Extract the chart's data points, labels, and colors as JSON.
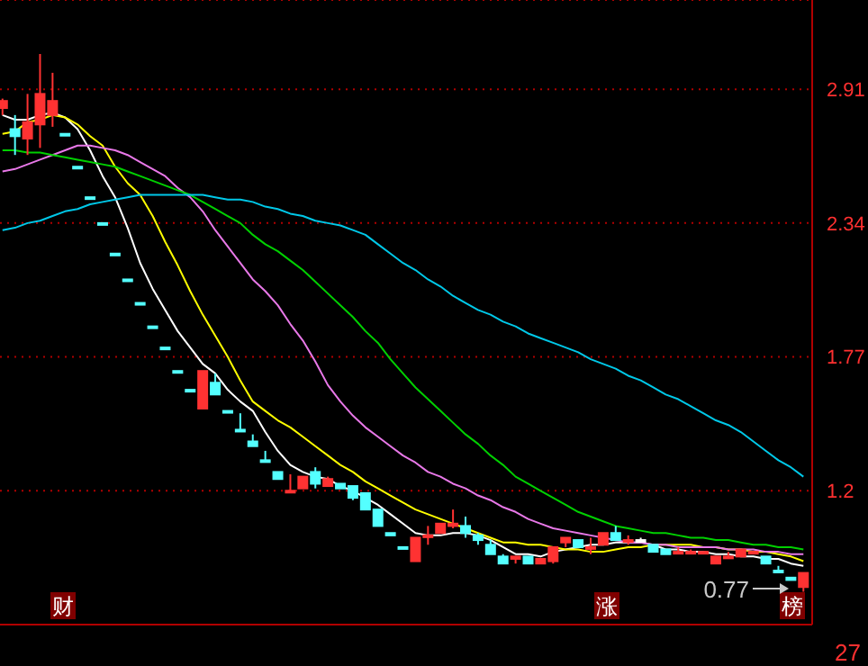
{
  "chart_data": {
    "type": "candlestick",
    "categories": [
      null,
      null,
      null,
      null,
      null,
      null,
      null,
      null,
      null,
      null,
      null,
      null,
      null,
      null,
      null,
      null,
      null,
      null,
      null,
      null,
      null,
      null,
      null,
      null,
      null,
      null,
      null,
      null,
      null,
      null,
      null,
      null,
      null,
      null,
      null,
      null,
      null,
      null,
      null,
      null,
      null,
      null,
      null,
      null,
      null,
      null,
      null,
      null,
      null,
      null,
      null,
      null,
      null,
      null,
      null,
      null,
      null,
      null,
      null,
      null,
      null,
      null,
      null,
      null,
      null
    ],
    "ohlc": [
      [
        2.83,
        2.87,
        2.8,
        2.86
      ],
      [
        2.74,
        2.8,
        2.63,
        2.71
      ],
      [
        2.7,
        2.89,
        2.63,
        2.77
      ],
      [
        2.76,
        3.06,
        2.66,
        2.89
      ],
      [
        2.8,
        2.98,
        2.75,
        2.86
      ],
      [
        2.72,
        2.72,
        2.72,
        2.72
      ],
      [
        2.58,
        2.58,
        2.58,
        2.58
      ],
      [
        2.45,
        2.45,
        2.45,
        2.45
      ],
      [
        2.34,
        2.34,
        2.34,
        2.34
      ],
      [
        2.21,
        2.21,
        2.21,
        2.21
      ],
      [
        2.1,
        2.1,
        2.1,
        2.1
      ],
      [
        2.0,
        2.0,
        2.0,
        2.0
      ],
      [
        1.9,
        1.9,
        1.9,
        1.9
      ],
      [
        1.81,
        1.81,
        1.81,
        1.81
      ],
      [
        1.71,
        1.71,
        1.71,
        1.71
      ],
      [
        1.63,
        1.63,
        1.63,
        1.63
      ],
      [
        1.55,
        1.71,
        1.55,
        1.71
      ],
      [
        1.66,
        1.7,
        1.61,
        1.61
      ],
      [
        1.54,
        1.54,
        1.54,
        1.54
      ],
      [
        1.46,
        1.53,
        1.46,
        1.46
      ],
      [
        1.41,
        1.44,
        1.39,
        1.39
      ],
      [
        1.33,
        1.37,
        1.33,
        1.33
      ],
      [
        1.28,
        1.28,
        1.25,
        1.25
      ],
      [
        1.2,
        1.27,
        1.2,
        1.2
      ],
      [
        1.21,
        1.26,
        1.21,
        1.26
      ],
      [
        1.28,
        1.3,
        1.21,
        1.23
      ],
      [
        1.22,
        1.26,
        1.22,
        1.25
      ],
      [
        1.23,
        1.23,
        1.21,
        1.21
      ],
      [
        1.22,
        1.22,
        1.16,
        1.17
      ],
      [
        1.19,
        1.19,
        1.12,
        1.12
      ],
      [
        1.12,
        1.12,
        1.05,
        1.05
      ],
      [
        1.02,
        1.02,
        1.01,
        1.01
      ],
      [
        0.96,
        0.96,
        0.96,
        0.96
      ],
      [
        0.9,
        1.0,
        0.9,
        1.0
      ],
      [
        1.01,
        1.05,
        0.97,
        1.01
      ],
      [
        1.02,
        1.06,
        1.02,
        1.06
      ],
      [
        1.05,
        1.12,
        1.04,
        1.06
      ],
      [
        1.05,
        1.09,
        1.0,
        1.02
      ],
      [
        1.01,
        1.02,
        0.97,
        0.99
      ],
      [
        0.97,
        0.99,
        0.93,
        0.93
      ],
      [
        0.92,
        0.93,
        0.89,
        0.89
      ],
      [
        0.91,
        0.92,
        0.89,
        0.92
      ],
      [
        0.92,
        0.92,
        0.89,
        0.89
      ],
      [
        0.89,
        0.91,
        0.89,
        0.91
      ],
      [
        0.9,
        0.96,
        0.89,
        0.96
      ],
      [
        0.98,
        1.0,
        0.96,
        1.0
      ],
      [
        0.99,
        0.99,
        0.96,
        0.96
      ],
      [
        0.96,
        1.0,
        0.93,
        0.96
      ],
      [
        0.97,
        1.02,
        0.97,
        1.02
      ],
      [
        1.02,
        1.05,
        0.99,
        0.99
      ],
      [
        0.99,
        1.01,
        0.97,
        0.99
      ],
      [
        0.99,
        1.0,
        0.98,
        0.99
      ],
      [
        0.97,
        0.97,
        0.94,
        0.94
      ],
      [
        0.95,
        0.95,
        0.93,
        0.93
      ],
      [
        0.94,
        0.96,
        0.93,
        0.94
      ],
      [
        0.94,
        0.95,
        0.93,
        0.94
      ],
      [
        0.94,
        0.94,
        0.94,
        0.94
      ],
      [
        0.89,
        0.92,
        0.89,
        0.92
      ],
      [
        0.92,
        0.94,
        0.91,
        0.92
      ],
      [
        0.92,
        0.95,
        0.92,
        0.95
      ],
      [
        0.94,
        0.94,
        0.94,
        0.94
      ],
      [
        0.92,
        0.92,
        0.89,
        0.89
      ],
      [
        0.86,
        0.88,
        0.86,
        0.86
      ],
      [
        0.83,
        0.83,
        0.82,
        0.82
      ],
      [
        0.79,
        0.85,
        0.77,
        0.85
      ]
    ],
    "colors": [
      "#ff3232",
      "#54ffff",
      "#ff3232",
      "#ff3232",
      "#ff3232",
      "#54ffff",
      "#54ffff",
      "#54ffff",
      "#54ffff",
      "#54ffff",
      "#54ffff",
      "#54ffff",
      "#54ffff",
      "#54ffff",
      "#54ffff",
      "#54ffff",
      "#ff3232",
      "#54ffff",
      "#54ffff",
      "#54ffff",
      "#54ffff",
      "#54ffff",
      "#54ffff",
      "#ff3232",
      "#ff3232",
      "#54ffff",
      "#ff3232",
      "#54ffff",
      "#54ffff",
      "#54ffff",
      "#54ffff",
      "#54ffff",
      "#54ffff",
      "#ff3232",
      "#ff3232",
      "#ff3232",
      "#ff3232",
      "#54ffff",
      "#54ffff",
      "#54ffff",
      "#54ffff",
      "#ff3232",
      "#54ffff",
      "#ff3232",
      "#ff3232",
      "#ff3232",
      "#54ffff",
      "#ff3232",
      "#ff3232",
      "#54ffff",
      "#ff3232",
      "#ffffff",
      "#54ffff",
      "#54ffff",
      "#ff3232",
      "#ff3232",
      "#ff3232",
      "#ff3232",
      "#ff3232",
      "#ff3232",
      "#ff3232",
      "#54ffff",
      "#54ffff",
      "#54ffff",
      "#ff3232"
    ],
    "series": [
      {
        "type": "line",
        "color": "#ffffff",
        "values": [
          2.8,
          2.78,
          2.78,
          2.8,
          2.81,
          2.79,
          2.74,
          2.65,
          2.54,
          2.45,
          2.32,
          2.17,
          2.06,
          1.97,
          1.88,
          1.81,
          1.74,
          1.7,
          1.63,
          1.58,
          1.54,
          1.45,
          1.37,
          1.31,
          1.28,
          1.26,
          1.25,
          1.22,
          1.2,
          1.17,
          1.14,
          1.1,
          1.06,
          1.02,
          1.01,
          1.01,
          1.02,
          1.02,
          1.01,
          0.99,
          0.96,
          0.93,
          0.93,
          0.92,
          0.94,
          0.95,
          0.96,
          0.97,
          0.97,
          0.98,
          0.98,
          0.98,
          0.97,
          0.95,
          0.95,
          0.94,
          0.94,
          0.93,
          0.93,
          0.92,
          0.92,
          0.91,
          0.91,
          0.89,
          0.88
        ]
      },
      {
        "type": "line",
        "color": "#ffff00",
        "values": [
          2.72,
          2.73,
          2.77,
          2.78,
          2.8,
          2.79,
          2.76,
          2.71,
          2.67,
          2.58,
          2.51,
          2.46,
          2.37,
          2.26,
          2.16,
          2.05,
          1.95,
          1.86,
          1.77,
          1.67,
          1.58,
          1.54,
          1.5,
          1.47,
          1.43,
          1.39,
          1.35,
          1.31,
          1.28,
          1.24,
          1.21,
          1.18,
          1.15,
          1.12,
          1.1,
          1.08,
          1.06,
          1.04,
          1.02,
          1.0,
          0.98,
          0.98,
          0.97,
          0.97,
          0.96,
          0.95,
          0.95,
          0.94,
          0.94,
          0.95,
          0.96,
          0.96,
          0.97,
          0.97,
          0.97,
          0.97,
          0.96,
          0.96,
          0.95,
          0.95,
          0.94,
          0.94,
          0.93,
          0.92,
          0.9
        ]
      },
      {
        "type": "line",
        "color": "#e878e8",
        "values": [
          2.56,
          2.57,
          2.59,
          2.61,
          2.63,
          2.65,
          2.67,
          2.67,
          2.66,
          2.65,
          2.63,
          2.6,
          2.57,
          2.54,
          2.49,
          2.45,
          2.39,
          2.31,
          2.24,
          2.17,
          2.1,
          2.05,
          1.99,
          1.91,
          1.84,
          1.75,
          1.65,
          1.58,
          1.52,
          1.47,
          1.43,
          1.39,
          1.35,
          1.32,
          1.28,
          1.26,
          1.23,
          1.21,
          1.18,
          1.16,
          1.13,
          1.11,
          1.08,
          1.06,
          1.04,
          1.03,
          1.02,
          1.01,
          1.0,
          0.99,
          0.98,
          0.98,
          0.97,
          0.97,
          0.96,
          0.96,
          0.96,
          0.96,
          0.95,
          0.95,
          0.95,
          0.94,
          0.94,
          0.93,
          0.93
        ]
      },
      {
        "type": "line",
        "color": "#00d000",
        "values": [
          2.65,
          2.65,
          2.64,
          2.64,
          2.63,
          2.62,
          2.61,
          2.6,
          2.59,
          2.58,
          2.56,
          2.54,
          2.52,
          2.5,
          2.48,
          2.46,
          2.43,
          2.4,
          2.37,
          2.34,
          2.29,
          2.25,
          2.22,
          2.18,
          2.14,
          2.09,
          2.04,
          1.99,
          1.94,
          1.88,
          1.83,
          1.76,
          1.7,
          1.64,
          1.59,
          1.54,
          1.49,
          1.44,
          1.4,
          1.35,
          1.31,
          1.26,
          1.23,
          1.2,
          1.17,
          1.14,
          1.11,
          1.09,
          1.07,
          1.05,
          1.04,
          1.03,
          1.02,
          1.02,
          1.01,
          1.0,
          1.0,
          0.99,
          0.99,
          0.98,
          0.97,
          0.97,
          0.96,
          0.96,
          0.95
        ]
      },
      {
        "type": "line",
        "color": "#00c8e8",
        "values": [
          2.31,
          2.32,
          2.34,
          2.35,
          2.37,
          2.39,
          2.4,
          2.42,
          2.43,
          2.44,
          2.45,
          2.46,
          2.46,
          2.46,
          2.46,
          2.46,
          2.46,
          2.45,
          2.44,
          2.44,
          2.43,
          2.41,
          2.4,
          2.38,
          2.37,
          2.35,
          2.34,
          2.33,
          2.31,
          2.29,
          2.25,
          2.21,
          2.17,
          2.14,
          2.1,
          2.07,
          2.03,
          2.0,
          1.97,
          1.95,
          1.92,
          1.9,
          1.87,
          1.85,
          1.83,
          1.81,
          1.79,
          1.76,
          1.74,
          1.72,
          1.69,
          1.67,
          1.64,
          1.61,
          1.59,
          1.56,
          1.53,
          1.5,
          1.48,
          1.45,
          1.41,
          1.37,
          1.33,
          1.3,
          1.26
        ]
      }
    ],
    "ylim": [
      0.63,
      3.29
    ],
    "yticks": [
      1.2,
      1.77,
      2.34,
      2.91
    ],
    "grid": "y",
    "tick_labels": "y",
    "annotations": [
      "财",
      "涨",
      "榜",
      "0.77",
      "27"
    ]
  }
}
